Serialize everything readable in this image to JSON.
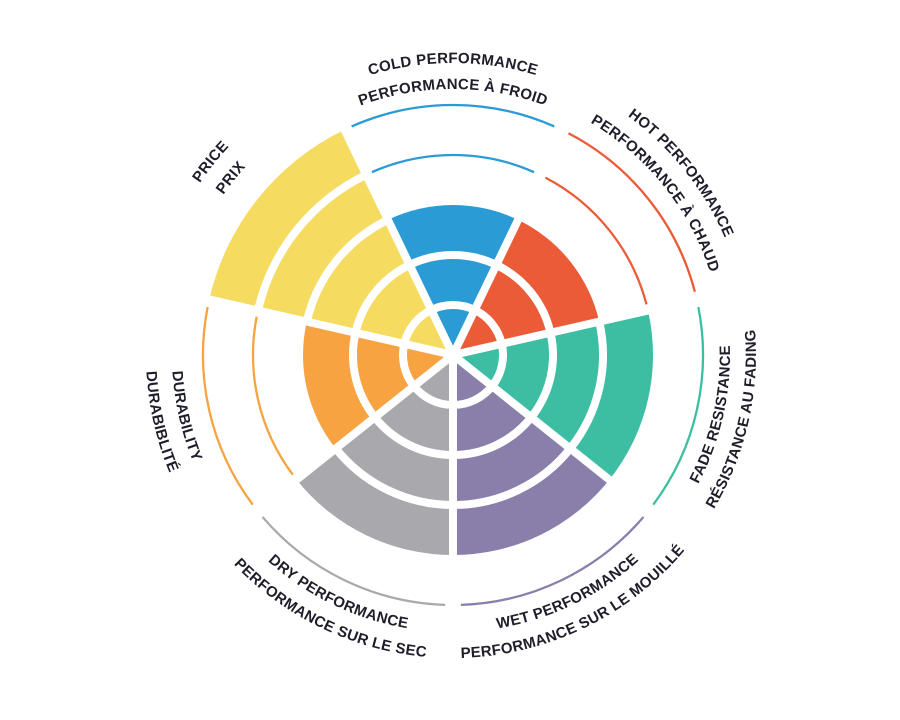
{
  "page": {
    "background_color": "#FFFFFF",
    "description": "Bilingual brake/tire performance polar rating chart"
  },
  "chart_data": {
    "type": "polar-bar",
    "title": "",
    "grid": "concentric-rings-with-white-gaps",
    "legend_position": "curved-labels-around-perimeter",
    "scale": {
      "min": 0,
      "max": 5,
      "ring_levels": [
        1,
        2,
        3,
        4,
        5
      ]
    },
    "text_color": "#1E1E2A",
    "series": [
      {
        "name": "cold-performance",
        "labels": [
          "COLD PERFORMANCE",
          "PERFORMANCE À FROID"
        ],
        "value": 3,
        "color": "#2B9BD6"
      },
      {
        "name": "hot-performance",
        "labels": [
          "HOT PERFORMANCE",
          "PERFORMANCE À CHAUD"
        ],
        "value": 3,
        "color": "#EB5B38"
      },
      {
        "name": "fade-resistance",
        "labels": [
          "RÉSISTANCE AU FADING",
          "FADE RESISTANCE"
        ],
        "value": 4,
        "color": "#3DBEA3"
      },
      {
        "name": "wet-performance",
        "labels": [
          "PERFORMANCE SUR LE MOUILLÉ",
          "WET PERFORMANCE"
        ],
        "value": 4,
        "color": "#8A7FAB"
      },
      {
        "name": "dry-performance",
        "labels": [
          "PERFORMANCE SUR LE SEC",
          "DRY PERFORMANCE"
        ],
        "value": 4,
        "color": "#A9A9AD"
      },
      {
        "name": "durability",
        "labels": [
          "DURABIBLITÉ",
          "DURABILITY"
        ],
        "value": 3,
        "color": "#F8A342"
      },
      {
        "name": "price",
        "labels": [
          "PRICE",
          "PRIX"
        ],
        "value": 5,
        "color": "#F5DB5F"
      }
    ]
  }
}
